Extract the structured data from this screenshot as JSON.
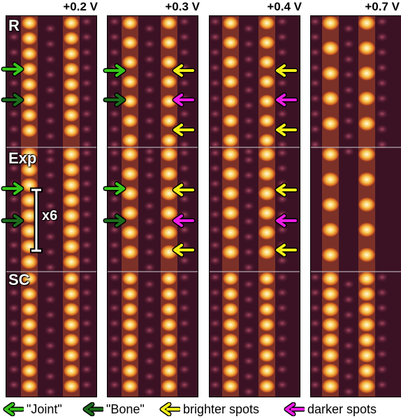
{
  "voltages": [
    "+0.2 V",
    "+0.3 V",
    "+0.4 V",
    "+0.7 V"
  ],
  "row_labels": [
    "R",
    "Exp",
    "SC"
  ],
  "scale_label": "x6",
  "legend": [
    {
      "label": "\"Joint\"",
      "color": "#39c61b"
    },
    {
      "label": "\"Bone\"",
      "color": "#1d6b1d"
    },
    {
      "label": "brighter spots",
      "color": "#f2ef1a"
    },
    {
      "label": "darker spots",
      "color": "#ee1ce5"
    }
  ],
  "colors": {
    "bright": "#fffbd0",
    "mid": "#f0a020",
    "dark": "#3a0f22"
  }
}
